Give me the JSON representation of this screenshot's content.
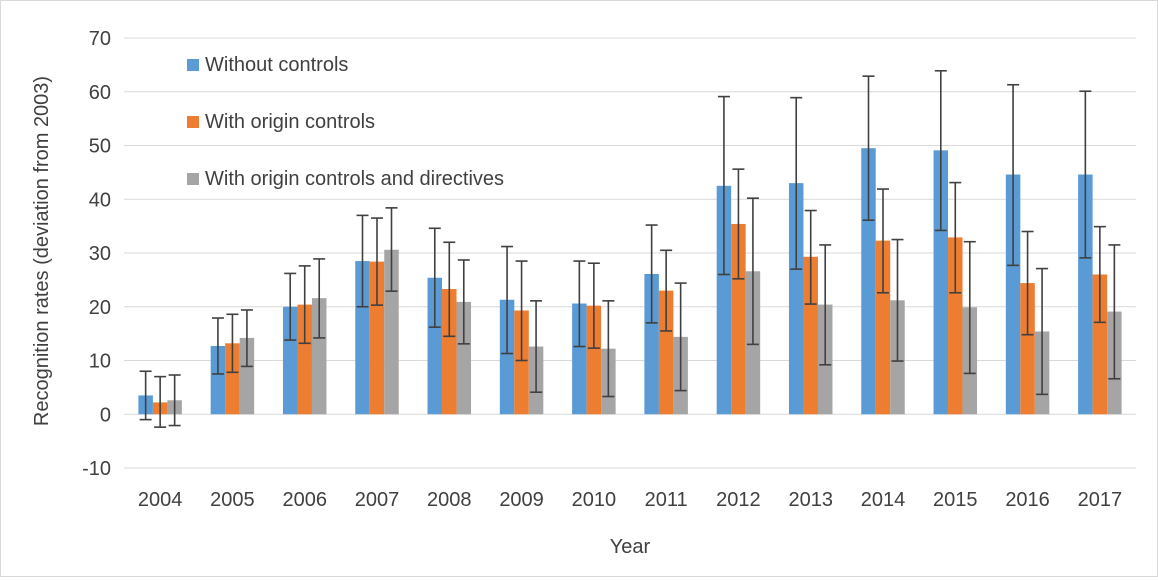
{
  "chart_data": {
    "type": "bar",
    "xlabel": "Year",
    "ylabel": "Recognition rates (deviation from 2003)",
    "ylim": [
      -10,
      70
    ],
    "yticks": [
      -10,
      0,
      10,
      20,
      30,
      40,
      50,
      60,
      70
    ],
    "grid": true,
    "legend_position": "top-left",
    "categories": [
      "2004",
      "2005",
      "2006",
      "2007",
      "2008",
      "2009",
      "2010",
      "2011",
      "2012",
      "2013",
      "2014",
      "2015",
      "2016",
      "2017"
    ],
    "series": [
      {
        "name": "Without controls",
        "color": "#5b9bd5",
        "values": [
          3.5,
          12.7,
          20.0,
          28.5,
          25.4,
          21.3,
          20.6,
          26.1,
          42.5,
          43.0,
          49.5,
          49.1,
          44.6,
          44.6
        ],
        "error_low": [
          -1.0,
          7.5,
          13.8,
          20.0,
          16.2,
          11.3,
          12.6,
          17.0,
          26.0,
          27.0,
          36.1,
          34.2,
          27.7,
          29.1
        ],
        "error_high": [
          8.0,
          17.9,
          26.2,
          37.0,
          34.6,
          31.2,
          28.5,
          35.2,
          59.1,
          58.9,
          62.9,
          63.9,
          61.3,
          60.1
        ]
      },
      {
        "name": "With origin controls",
        "color": "#ed7d31",
        "values": [
          2.2,
          13.2,
          20.4,
          28.4,
          23.3,
          19.3,
          20.2,
          23.0,
          35.4,
          29.3,
          32.3,
          32.9,
          24.4,
          26.0
        ],
        "error_low": [
          -2.4,
          7.8,
          13.2,
          20.3,
          14.5,
          10.0,
          12.3,
          15.5,
          25.2,
          20.5,
          22.6,
          22.6,
          14.8,
          17.1
        ],
        "error_high": [
          7.0,
          18.6,
          27.6,
          36.5,
          32.0,
          28.5,
          28.1,
          30.5,
          45.6,
          37.9,
          41.9,
          43.1,
          34.0,
          34.9
        ]
      },
      {
        "name": "With origin controls and directives",
        "color": "#a5a5a5",
        "values": [
          2.6,
          14.2,
          21.6,
          30.6,
          20.9,
          12.6,
          12.2,
          14.4,
          26.6,
          20.4,
          21.2,
          19.9,
          15.4,
          19.1
        ],
        "error_low": [
          -2.1,
          8.9,
          14.2,
          22.9,
          13.1,
          4.1,
          3.3,
          4.4,
          13.0,
          9.2,
          9.9,
          7.6,
          3.7,
          6.6
        ],
        "error_high": [
          7.3,
          19.4,
          28.9,
          38.4,
          28.7,
          21.1,
          21.1,
          24.4,
          40.2,
          31.5,
          32.5,
          32.1,
          27.1,
          31.5
        ]
      }
    ]
  }
}
